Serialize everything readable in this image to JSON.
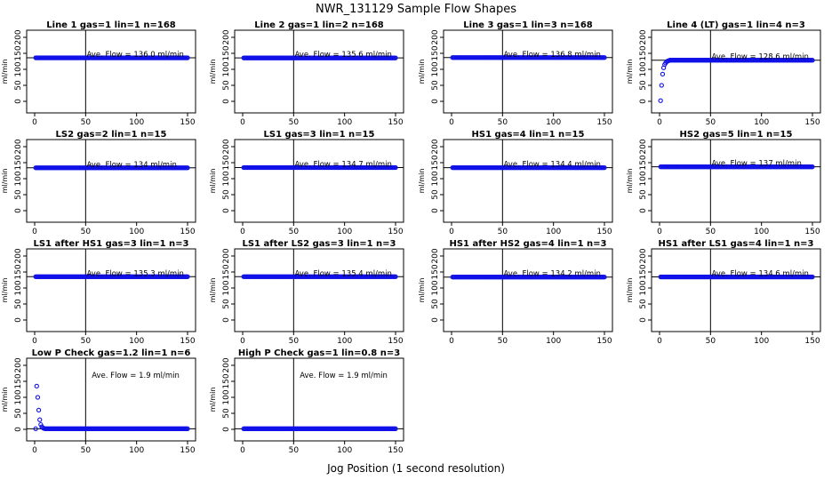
{
  "title": "NWR_131129  Sample Flow Shapes",
  "xlabel": "Jog Position (1 second resolution)",
  "ylabel": "ml/min",
  "chart_data": [
    {
      "type": "scatter",
      "title": "Line 1 gas=1 lin=1 n=168",
      "annotation": "Ave. Flow =  136.0  ml/min",
      "flow": 136.0,
      "start": [],
      "xlim": [
        0,
        150
      ],
      "ylim": [
        0,
        200
      ],
      "xticks": [
        0,
        50,
        100,
        150
      ],
      "yticks": [
        0,
        50,
        100,
        150,
        200
      ],
      "vline": 50
    },
    {
      "type": "scatter",
      "title": "Line 2 gas=1 lin=2 n=168",
      "annotation": "Ave. Flow =  135.6  ml/min",
      "flow": 135.6,
      "start": [],
      "xlim": [
        0,
        150
      ],
      "ylim": [
        0,
        200
      ],
      "xticks": [
        0,
        50,
        100,
        150
      ],
      "yticks": [
        0,
        50,
        100,
        150,
        200
      ],
      "vline": 50
    },
    {
      "type": "scatter",
      "title": "Line 3 gas=1 lin=3 n=168",
      "annotation": "Ave. Flow =  136.8  ml/min",
      "flow": 136.8,
      "start": [],
      "xlim": [
        0,
        150
      ],
      "ylim": [
        0,
        200
      ],
      "xticks": [
        0,
        50,
        100,
        150
      ],
      "yticks": [
        0,
        50,
        100,
        150,
        200
      ],
      "vline": 50
    },
    {
      "type": "scatter",
      "title": "Line 4 (LT) gas=1 lin=4 n=3",
      "annotation": "Ave. Flow =  128.6  ml/min",
      "flow": 128.6,
      "start": [
        [
          1,
          2
        ],
        [
          2,
          50
        ],
        [
          3,
          85
        ],
        [
          4,
          105
        ],
        [
          5,
          115
        ],
        [
          6,
          120
        ],
        [
          7,
          124
        ],
        [
          8,
          126
        ],
        [
          9,
          127
        ]
      ],
      "xlim": [
        0,
        150
      ],
      "ylim": [
        0,
        200
      ],
      "xticks": [
        0,
        50,
        100,
        150
      ],
      "yticks": [
        0,
        50,
        100,
        150,
        200
      ],
      "vline": 50
    },
    {
      "type": "scatter",
      "title": "LS2 gas=2 lin=1 n=15",
      "annotation": "Ave. Flow =  134  ml/min",
      "flow": 134,
      "start": [],
      "xlim": [
        0,
        150
      ],
      "ylim": [
        0,
        200
      ],
      "xticks": [
        0,
        50,
        100,
        150
      ],
      "yticks": [
        0,
        50,
        100,
        150,
        200
      ],
      "vline": 50
    },
    {
      "type": "scatter",
      "title": "LS1 gas=3 lin=1 n=15",
      "annotation": "Ave. Flow =  134.7  ml/min",
      "flow": 134.7,
      "start": [],
      "xlim": [
        0,
        150
      ],
      "ylim": [
        0,
        200
      ],
      "xticks": [
        0,
        50,
        100,
        150
      ],
      "yticks": [
        0,
        50,
        100,
        150,
        200
      ],
      "vline": 50
    },
    {
      "type": "scatter",
      "title": "HS1 gas=4 lin=1 n=15",
      "annotation": "Ave. Flow =  134.4  ml/min",
      "flow": 134.4,
      "start": [],
      "xlim": [
        0,
        150
      ],
      "ylim": [
        0,
        200
      ],
      "xticks": [
        0,
        50,
        100,
        150
      ],
      "yticks": [
        0,
        50,
        100,
        150,
        200
      ],
      "vline": 50
    },
    {
      "type": "scatter",
      "title": "HS2 gas=5 lin=1 n=15",
      "annotation": "Ave. Flow =  137  ml/min",
      "flow": 137,
      "start": [],
      "xlim": [
        0,
        150
      ],
      "ylim": [
        0,
        200
      ],
      "xticks": [
        0,
        50,
        100,
        150
      ],
      "yticks": [
        0,
        50,
        100,
        150,
        200
      ],
      "vline": 50
    },
    {
      "type": "scatter",
      "title": "LS1 after HS1 gas=3 lin=1 n=3",
      "annotation": "Ave. Flow =  135.3  ml/min",
      "flow": 135.3,
      "start": [],
      "xlim": [
        0,
        150
      ],
      "ylim": [
        0,
        200
      ],
      "xticks": [
        0,
        50,
        100,
        150
      ],
      "yticks": [
        0,
        50,
        100,
        150,
        200
      ],
      "vline": 50
    },
    {
      "type": "scatter",
      "title": "LS1 after LS2 gas=3 lin=1 n=3",
      "annotation": "Ave. Flow =  135.4  ml/min",
      "flow": 135.4,
      "start": [],
      "xlim": [
        0,
        150
      ],
      "ylim": [
        0,
        200
      ],
      "xticks": [
        0,
        50,
        100,
        150
      ],
      "yticks": [
        0,
        50,
        100,
        150,
        200
      ],
      "vline": 50
    },
    {
      "type": "scatter",
      "title": "HS1 after HS2 gas=4 lin=1 n=3",
      "annotation": "Ave. Flow =  134.2  ml/min",
      "flow": 134.2,
      "start": [],
      "xlim": [
        0,
        150
      ],
      "ylim": [
        0,
        200
      ],
      "xticks": [
        0,
        50,
        100,
        150
      ],
      "yticks": [
        0,
        50,
        100,
        150,
        200
      ],
      "vline": 50
    },
    {
      "type": "scatter",
      "title": "HS1 after LS1 gas=4 lin=1 n=3",
      "annotation": "Ave. Flow =  134.6  ml/min",
      "flow": 134.6,
      "start": [],
      "xlim": [
        0,
        150
      ],
      "ylim": [
        0,
        200
      ],
      "xticks": [
        0,
        50,
        100,
        150
      ],
      "yticks": [
        0,
        50,
        100,
        150,
        200
      ],
      "vline": 50
    },
    {
      "type": "scatter",
      "title": "Low P Check gas=1.2 lin=1 n=6",
      "annotation": "Ave. Flow =  1.9  ml/min",
      "flow": 1.9,
      "start": [
        [
          2,
          135
        ],
        [
          3,
          100
        ],
        [
          4,
          60
        ],
        [
          5,
          30
        ],
        [
          6,
          15
        ],
        [
          7,
          8
        ],
        [
          8,
          5
        ],
        [
          9,
          3
        ],
        [
          10,
          2
        ]
      ],
      "xlim": [
        0,
        150
      ],
      "ylim": [
        0,
        200
      ],
      "xticks": [
        0,
        50,
        100,
        150
      ],
      "yticks": [
        0,
        50,
        100,
        150,
        200
      ],
      "vline": 50
    },
    {
      "type": "scatter",
      "title": "High P Check gas=1 lin=0.8 n=3",
      "annotation": "Ave. Flow =  1.9  ml/min",
      "flow": 1.9,
      "start": [],
      "xlim": [
        0,
        150
      ],
      "ylim": [
        0,
        200
      ],
      "xticks": [
        0,
        50,
        100,
        150
      ],
      "yticks": [
        0,
        50,
        100,
        150,
        200
      ],
      "vline": 50
    }
  ],
  "colors": {
    "points": "#1010e8",
    "lines": "#000000"
  }
}
